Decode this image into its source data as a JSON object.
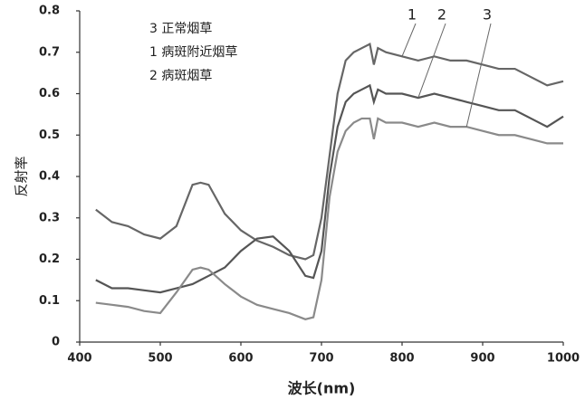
{
  "chart_data": {
    "type": "line",
    "x_label": "波长(nm)",
    "y_label": "反射率",
    "x": [
      420,
      440,
      460,
      480,
      500,
      520,
      540,
      550,
      560,
      580,
      600,
      620,
      640,
      660,
      680,
      690,
      700,
      710,
      720,
      730,
      740,
      750,
      760,
      765,
      770,
      780,
      800,
      820,
      840,
      860,
      880,
      900,
      920,
      940,
      960,
      980,
      1000
    ],
    "series": [
      {
        "name": "1 病斑附近烟草",
        "label": "1",
        "color": "#666666",
        "values": [
          0.32,
          0.29,
          0.28,
          0.26,
          0.25,
          0.28,
          0.38,
          0.385,
          0.38,
          0.31,
          0.27,
          0.245,
          0.23,
          0.21,
          0.2,
          0.21,
          0.3,
          0.45,
          0.6,
          0.68,
          0.7,
          0.71,
          0.72,
          0.67,
          0.71,
          0.7,
          0.69,
          0.68,
          0.69,
          0.68,
          0.68,
          0.67,
          0.66,
          0.66,
          0.64,
          0.62,
          0.63
        ]
      },
      {
        "name": "2 病斑烟草",
        "label": "2",
        "color": "#555555",
        "values": [
          0.15,
          0.13,
          0.13,
          0.125,
          0.12,
          0.13,
          0.14,
          0.15,
          0.16,
          0.18,
          0.22,
          0.25,
          0.255,
          0.22,
          0.16,
          0.155,
          0.22,
          0.4,
          0.52,
          0.58,
          0.6,
          0.61,
          0.62,
          0.58,
          0.61,
          0.6,
          0.6,
          0.59,
          0.6,
          0.59,
          0.58,
          0.57,
          0.56,
          0.56,
          0.54,
          0.52,
          0.545
        ]
      },
      {
        "name": "3 正常烟草",
        "label": "3",
        "color": "#8a8a8a",
        "values": [
          0.095,
          0.09,
          0.085,
          0.075,
          0.07,
          0.12,
          0.175,
          0.18,
          0.175,
          0.14,
          0.11,
          0.09,
          0.08,
          0.07,
          0.055,
          0.06,
          0.15,
          0.35,
          0.46,
          0.51,
          0.53,
          0.54,
          0.54,
          0.49,
          0.54,
          0.53,
          0.53,
          0.52,
          0.53,
          0.52,
          0.52,
          0.51,
          0.5,
          0.5,
          0.49,
          0.48,
          0.48
        ]
      }
    ],
    "legend_order": [
      2,
      0,
      1
    ],
    "xlim": [
      400,
      1000
    ],
    "xticks": [
      400,
      500,
      600,
      700,
      800,
      900,
      1000
    ],
    "ylim": [
      0,
      0.8
    ],
    "yticks": [
      0,
      0.1,
      0.2,
      0.3,
      0.4,
      0.5,
      0.6,
      0.7,
      0.8
    ],
    "grid": false
  }
}
